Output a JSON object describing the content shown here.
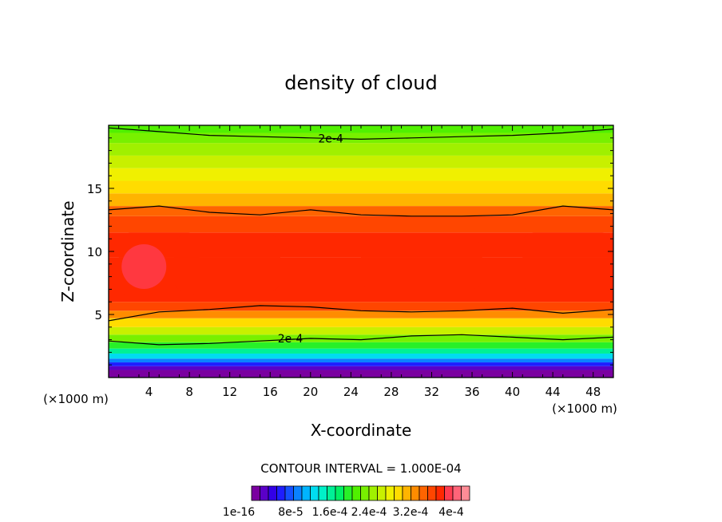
{
  "chart_data": {
    "type": "heatmap",
    "title": "density of cloud",
    "xlabel": "X-coordinate",
    "ylabel": "Z-coordinate",
    "x_unit": "(×1000 m)",
    "y_unit": "(×1000 m)",
    "xlim": [
      0,
      50
    ],
    "ylim": [
      0,
      20
    ],
    "x_ticks": [
      4,
      8,
      12,
      16,
      20,
      24,
      28,
      32,
      36,
      40,
      44,
      48
    ],
    "y_ticks": [
      5,
      10,
      15
    ],
    "contour_lines": [
      {
        "label": "2e-4",
        "x": 22,
        "z": 18.95,
        "approx_z": [
          19.8,
          19.5,
          19.2,
          19.1,
          19.0,
          18.9,
          19.0,
          19.1,
          19.2,
          19.4,
          19.7
        ]
      },
      {
        "label": "",
        "x": null,
        "z": null,
        "approx_z": [
          13.3,
          13.6,
          13.1,
          12.9,
          13.3,
          12.9,
          12.8,
          12.8,
          12.9,
          13.6,
          13.3
        ]
      },
      {
        "label": "",
        "x": null,
        "z": null,
        "approx_z": [
          4.5,
          5.2,
          5.4,
          5.7,
          5.6,
          5.3,
          5.2,
          5.3,
          5.5,
          5.1,
          5.4
        ]
      },
      {
        "label": "2e-4",
        "x": 18,
        "z": 3.1,
        "approx_z": [
          2.9,
          2.6,
          2.7,
          2.9,
          3.1,
          3.0,
          3.3,
          3.4,
          3.2,
          3.0,
          3.2
        ]
      }
    ],
    "colorbar": {
      "title": "CONTOUR INTERVAL = 1.000E-04",
      "tick_labels": [
        "1e-16",
        "8e-5",
        "1.6e-4",
        "2.4e-4",
        "3.2e-4",
        "4e-4"
      ],
      "colors": [
        "#7a00a0",
        "#5a00c8",
        "#3200e6",
        "#1e1eff",
        "#1450ff",
        "#0a82ff",
        "#00b4ff",
        "#00dcf0",
        "#00f0c8",
        "#00f096",
        "#00f064",
        "#28f028",
        "#50f000",
        "#78f000",
        "#a0f000",
        "#c8f000",
        "#f0f000",
        "#ffdc00",
        "#ffb400",
        "#ff8c00",
        "#ff6400",
        "#ff4600",
        "#ff2800",
        "#ff3c50",
        "#ff6478",
        "#ff8c96"
      ]
    }
  }
}
